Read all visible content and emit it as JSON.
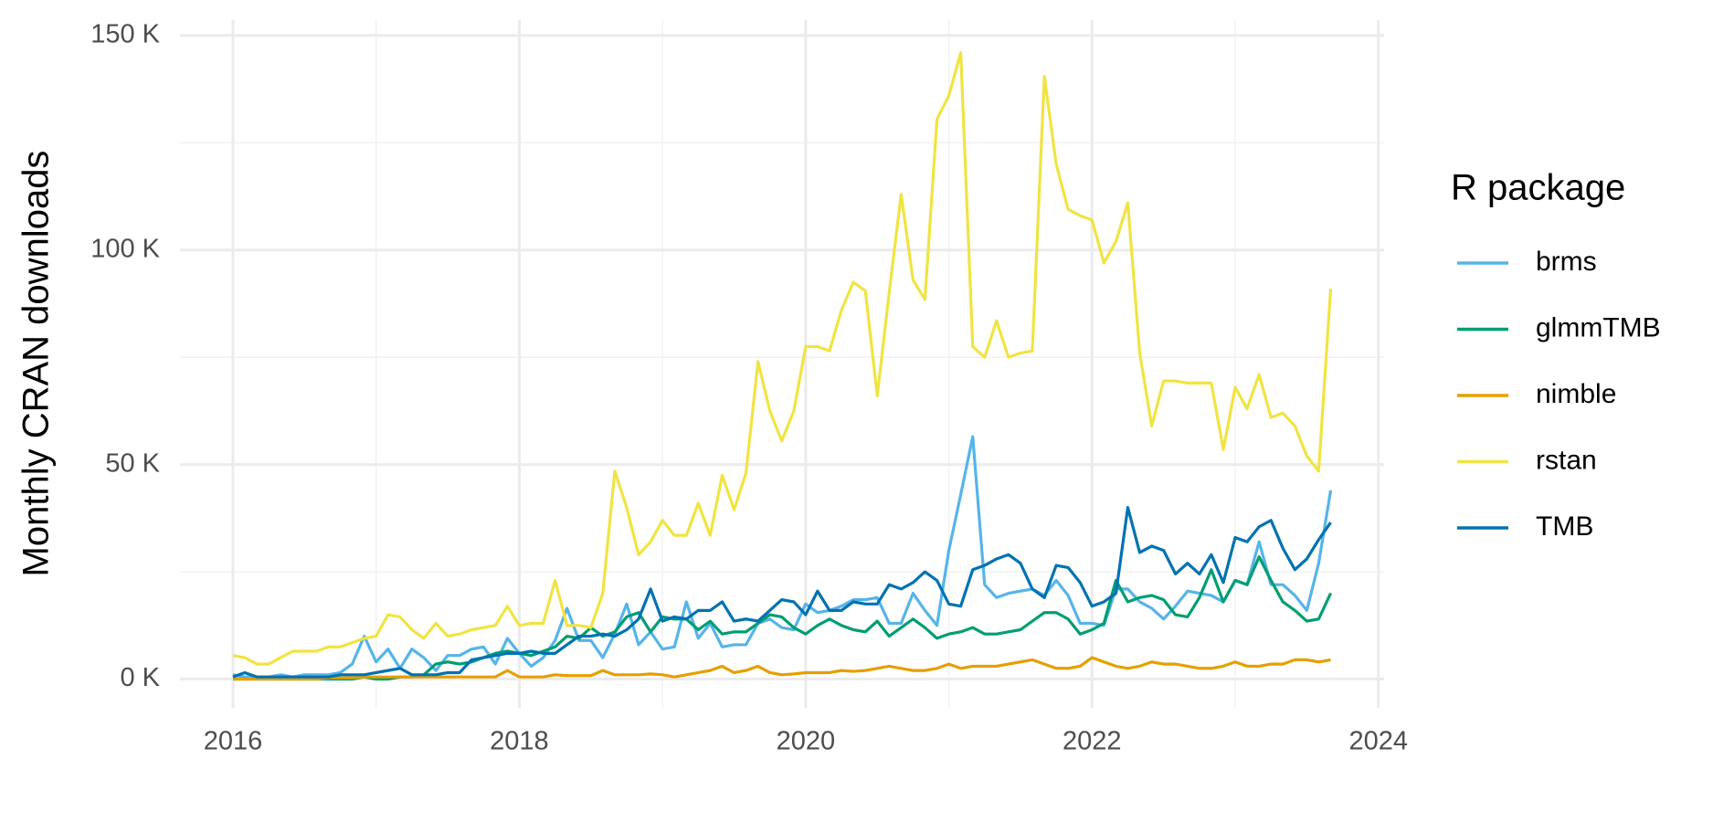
{
  "chart_data": {
    "type": "line",
    "y_label": "Monthly CRAN downloads",
    "legend_title": "R package",
    "legend": "right",
    "grid": true,
    "xlim": [
      2015.63,
      2024.04
    ],
    "xticks": [
      2016,
      2018,
      2020,
      2022,
      2024
    ],
    "ylim": [
      -6.7,
      153.6
    ],
    "yticks": [
      {
        "value": 0,
        "label": "0 K"
      },
      {
        "value": 50,
        "label": "50 K"
      },
      {
        "value": 100,
        "label": "100 K"
      },
      {
        "value": 150,
        "label": "150 K"
      }
    ],
    "x": [
      2016,
      2016.083,
      2016.167,
      2016.25,
      2016.333,
      2016.417,
      2016.5,
      2016.583,
      2016.667,
      2016.75,
      2016.833,
      2016.917,
      2017,
      2017.083,
      2017.167,
      2017.25,
      2017.333,
      2017.417,
      2017.5,
      2017.583,
      2017.667,
      2017.75,
      2017.833,
      2017.917,
      2018,
      2018.083,
      2018.167,
      2018.25,
      2018.333,
      2018.417,
      2018.5,
      2018.583,
      2018.667,
      2018.75,
      2018.833,
      2018.917,
      2019,
      2019.083,
      2019.167,
      2019.25,
      2019.333,
      2019.417,
      2019.5,
      2019.583,
      2019.667,
      2019.75,
      2019.833,
      2019.917,
      2020,
      2020.083,
      2020.167,
      2020.25,
      2020.333,
      2020.417,
      2020.5,
      2020.583,
      2020.667,
      2020.75,
      2020.833,
      2020.917,
      2021,
      2021.083,
      2021.167,
      2021.25,
      2021.333,
      2021.417,
      2021.5,
      2021.583,
      2021.667,
      2021.75,
      2021.833,
      2021.917,
      2022,
      2022.083,
      2022.167,
      2022.25,
      2022.333,
      2022.417,
      2022.5,
      2022.583,
      2022.667,
      2022.75,
      2022.833,
      2022.917,
      2023,
      2023.083,
      2023.167,
      2023.25,
      2023.333,
      2023.417,
      2023.5,
      2023.583,
      2023.667
    ],
    "series": [
      {
        "name": "brms",
        "color": "#56B4E9",
        "values": [
          1,
          0.5,
          0.5,
          0.5,
          1,
          0.5,
          1,
          1,
          1,
          1.5,
          3.5,
          10,
          4,
          7,
          2.5,
          7,
          5,
          2,
          5.5,
          5.5,
          7,
          7.5,
          3.5,
          9.5,
          6,
          3,
          5,
          9,
          16.5,
          9,
          9,
          5,
          10.5,
          17.5,
          8,
          11,
          7,
          7.5,
          18,
          9.5,
          13,
          7.5,
          8,
          8,
          13,
          14,
          12,
          11.5,
          17.5,
          15.5,
          16,
          17,
          18.5,
          18.5,
          19,
          13,
          13,
          20,
          16,
          12.5,
          30,
          43,
          56.5,
          22,
          19,
          20,
          20.5,
          21,
          19.5,
          23,
          19.5,
          13,
          13,
          12.5,
          21,
          21,
          18,
          16.5,
          14,
          17,
          20.5,
          20,
          19.5,
          18,
          23,
          22,
          32,
          22,
          22,
          19.5,
          16,
          27,
          44
        ]
      },
      {
        "name": "glmmTMB",
        "color": "#009E73",
        "values": [
          0,
          0,
          0,
          0,
          0,
          0,
          0,
          0,
          0,
          0,
          0,
          0.5,
          0,
          0,
          0.5,
          0.5,
          1,
          3.5,
          4,
          3.5,
          4,
          5,
          6,
          6.5,
          6,
          5.5,
          6.5,
          7.5,
          10,
          9.5,
          12,
          10,
          11,
          14.5,
          15.5,
          11,
          14.5,
          14,
          14,
          11.5,
          13.5,
          10.5,
          11,
          11,
          13,
          15,
          14.5,
          12,
          10.5,
          12.5,
          14,
          12.5,
          11.5,
          11,
          13.5,
          10,
          12,
          14,
          12,
          9.5,
          10.5,
          11,
          12,
          10.5,
          10.5,
          11,
          11.5,
          13.5,
          15.5,
          15.5,
          14,
          10.5,
          11.5,
          13,
          23,
          18,
          19,
          19.5,
          18.5,
          15,
          14.5,
          19,
          25.5,
          18,
          23,
          22,
          28.5,
          23,
          18,
          16,
          13.5,
          14,
          20
        ]
      },
      {
        "name": "nimble",
        "color": "#E69F00",
        "values": [
          0,
          0,
          0,
          0,
          0,
          0,
          0,
          0,
          0.3,
          0.3,
          0.3,
          0.5,
          0.5,
          0.5,
          0.5,
          0.5,
          0.5,
          0.5,
          0.5,
          0.5,
          0.5,
          0.5,
          0.5,
          2,
          0.5,
          0.5,
          0.5,
          1,
          0.8,
          0.8,
          0.8,
          2,
          1,
          1,
          1,
          1.2,
          1,
          0.5,
          1,
          1.5,
          2,
          3,
          1.5,
          2,
          3,
          1.5,
          1,
          1.2,
          1.5,
          1.5,
          1.5,
          2,
          1.8,
          2,
          2.5,
          3,
          2.5,
          2,
          2,
          2.5,
          3.5,
          2.5,
          3,
          3,
          3,
          3.5,
          4,
          4.5,
          3.5,
          2.5,
          2.5,
          3,
          5,
          4,
          3,
          2.5,
          3,
          4,
          3.5,
          3.5,
          3,
          2.5,
          2.5,
          3,
          4,
          3,
          3,
          3.5,
          3.5,
          4.5,
          4.5,
          4,
          4.5
        ]
      },
      {
        "name": "rstan",
        "color": "#F0E442",
        "values": [
          5.5,
          5,
          3.5,
          3.5,
          5,
          6.5,
          6.5,
          6.5,
          7.5,
          7.5,
          8.5,
          9.5,
          10,
          15,
          14.5,
          11.5,
          9.5,
          13,
          10,
          10.5,
          11.5,
          12,
          12.5,
          17,
          12.5,
          13,
          13,
          23,
          12.5,
          12.5,
          12,
          20,
          48.5,
          40,
          29,
          32,
          37,
          33.5,
          33.5,
          41,
          33.5,
          47.5,
          39.5,
          48,
          74,
          62.5,
          55.5,
          62.5,
          77.5,
          77.5,
          76.5,
          86,
          92.5,
          90.5,
          66,
          90,
          113,
          93,
          88.5,
          130.5,
          136,
          146,
          77.5,
          75,
          83.5,
          75,
          76,
          76.5,
          140.5,
          120,
          109.5,
          108,
          107,
          97,
          102,
          111,
          76,
          59,
          69.5,
          69.5,
          69,
          69,
          69,
          53.5,
          68,
          63,
          71,
          61,
          62,
          59,
          52,
          48.5,
          91
        ]
      },
      {
        "name": "TMB",
        "color": "#0072B2",
        "values": [
          0.5,
          1.5,
          0.5,
          0.5,
          0.5,
          0.5,
          0.5,
          0.5,
          0.5,
          1,
          1,
          1,
          1.5,
          2,
          2.5,
          1,
          1,
          1,
          1.5,
          1.5,
          4.5,
          5,
          5.5,
          6,
          6,
          6.5,
          6,
          6,
          8,
          10,
          10,
          10.5,
          10,
          11.5,
          14,
          21,
          13.5,
          14.5,
          14,
          16,
          16,
          18,
          13.5,
          14,
          13.5,
          16,
          18.5,
          18,
          15,
          20.5,
          16,
          16,
          18,
          17.5,
          17.5,
          22,
          21,
          22.5,
          25,
          23,
          17.5,
          17,
          25.5,
          26.5,
          28,
          29,
          27,
          21,
          19,
          26.5,
          26,
          22.5,
          17,
          18,
          20,
          40,
          29.5,
          31,
          30,
          24.5,
          27,
          24.5,
          29,
          22.5,
          33,
          32,
          35.5,
          37,
          30.5,
          25.5,
          28,
          32.5,
          36.5
        ]
      }
    ]
  }
}
